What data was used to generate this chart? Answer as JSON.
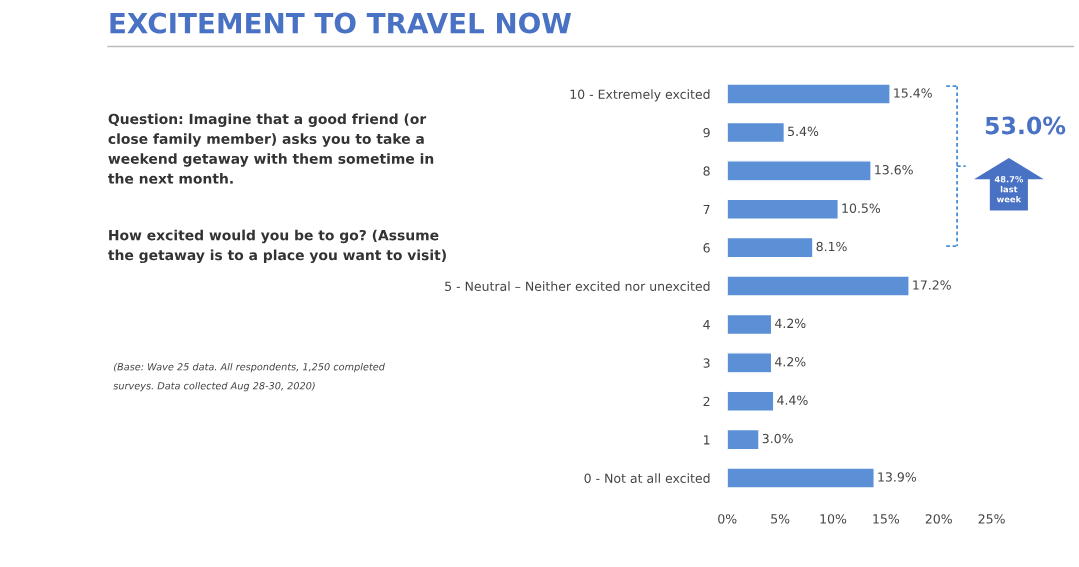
{
  "chart_data": {
    "type": "bar",
    "orientation": "horizontal",
    "title": "EXCITEMENT TO TRAVEL NOW",
    "categories": [
      "10 - Extremely excited",
      "9",
      "8",
      "7",
      "6",
      "5 - Neutral – Neither excited nor unexcited",
      "4",
      "3",
      "2",
      "1",
      "0 - Not at all excited"
    ],
    "values": [
      15.4,
      5.4,
      13.6,
      10.5,
      8.1,
      17.2,
      4.2,
      4.2,
      4.4,
      3.0,
      13.9
    ],
    "value_labels": [
      "15.4%",
      "5.4%",
      "13.6%",
      "10.5%",
      "8.1%",
      "17.2%",
      "4.2%",
      "4.2%",
      "4.4%",
      "3.0%",
      "13.9%"
    ],
    "color": "#5b8fd6",
    "xlim": [
      0,
      25
    ],
    "xticks": [
      {
        "value": 0,
        "label": "0%"
      },
      {
        "value": 5,
        "label": "5%"
      },
      {
        "value": 10,
        "label": "10%"
      },
      {
        "value": 15,
        "label": "15%"
      },
      {
        "value": 20,
        "label": "20%"
      },
      {
        "value": 25,
        "label": "25%"
      }
    ],
    "grid": false,
    "legend": false,
    "annotations": [
      "Question: Imagine that a good friend (or\nclose family member) asks you to take a\nweekend getaway with them sometime in\nthe next month.",
      "How excited would you be to go? (Assume\nthe getaway is to a place you want to visit)",
      "(Base: Wave 25 data. All respondents, 1,250 completed\nsurveys. Data collected Aug 28-30, 2020)",
      "53.0%",
      "48.7%\nlast\nweek"
    ]
  }
}
